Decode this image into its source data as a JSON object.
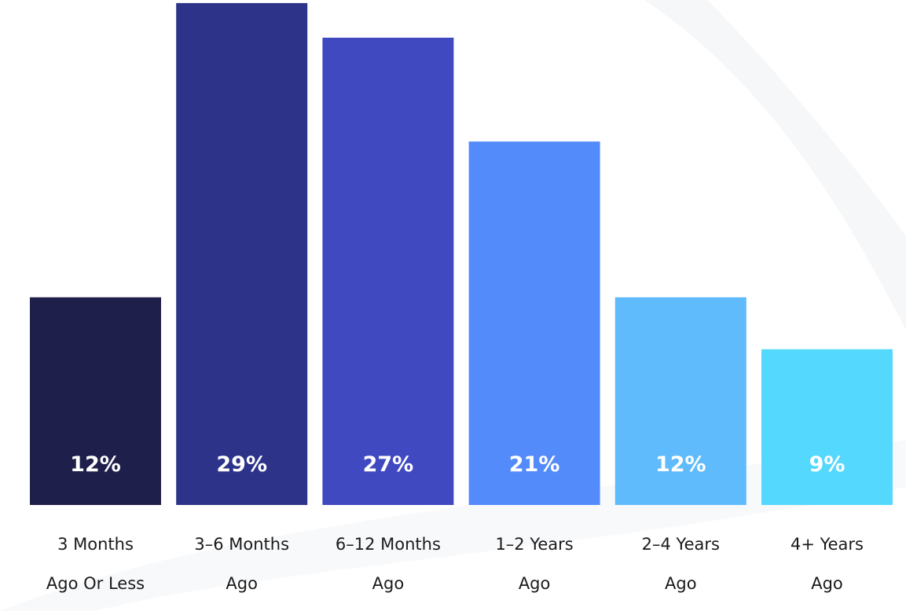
{
  "chart_data": {
    "type": "bar",
    "categories": [
      [
        "3 Months",
        "Ago Or Less"
      ],
      [
        "3–6 Months",
        "Ago"
      ],
      [
        "6–12 Months",
        "Ago"
      ],
      [
        "1–2 Years",
        "Ago"
      ],
      [
        "2–4 Years",
        "Ago"
      ],
      [
        "4+ Years",
        "Ago"
      ]
    ],
    "values": [
      12,
      29,
      27,
      21,
      12,
      9
    ],
    "value_labels": [
      "12%",
      "29%",
      "27%",
      "21%",
      "12%",
      "9%"
    ],
    "colors": [
      "#1f1f4b",
      "#2d3388",
      "#4149c1",
      "#548bfb",
      "#5fbbfb",
      "#55d8fd"
    ],
    "grid": false,
    "legend": "none"
  }
}
